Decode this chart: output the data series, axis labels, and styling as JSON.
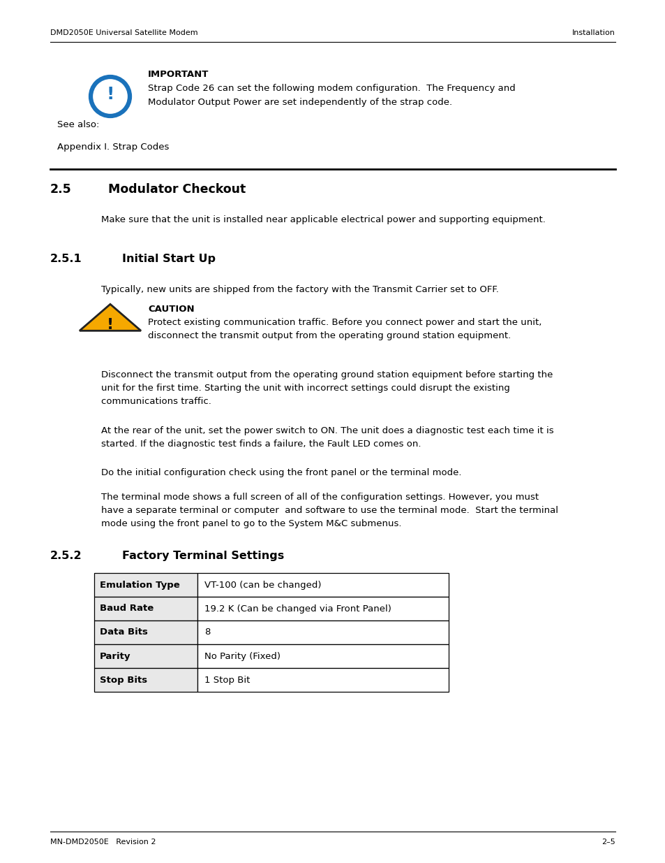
{
  "page_width": 9.54,
  "page_height": 12.35,
  "bg_color": "#ffffff",
  "header_left": "DMD2050E Universal Satellite Modem",
  "header_right": "Installation",
  "footer_left": "MN-DMD2050E   Revision 2",
  "footer_right": "2–5",
  "important_title": "IMPORTANT",
  "important_body1": "Strap Code 26 can set the following modem configuration.  The Frequency and",
  "important_body2": "Modulator Output Power are set independently of the strap code.",
  "see_also": "See also:",
  "appendix_ref": "Appendix I. Strap Codes",
  "section_25": "2.5",
  "section_25_title": "Modulator Checkout",
  "section_25_body": "Make sure that the unit is installed near applicable electrical power and supporting equipment.",
  "section_251": "2.5.1",
  "section_251_title": "Initial Start Up",
  "section_251_body": "Typically, new units are shipped from the factory with the Transmit Carrier set to OFF.",
  "caution_title": "CAUTION",
  "caution_body1": "Protect existing communication traffic. Before you connect power and start the unit,",
  "caution_body2": "disconnect the transmit output from the operating ground station equipment.",
  "body_para1_line1": "Disconnect the transmit output from the operating ground station equipment before starting the",
  "body_para1_line2": "unit for the first time. Starting the unit with incorrect settings could disrupt the existing",
  "body_para1_line3": "communications traffic.",
  "body_para2_line1": "At the rear of the unit, set the power switch to ON. The unit does a diagnostic test each time it is",
  "body_para2_line2": "started. If the diagnostic test finds a failure, the Fault LED comes on.",
  "body_para3": "Do the initial configuration check using the front panel or the terminal mode.",
  "body_para4_line1": "The terminal mode shows a full screen of all of the configuration settings. However, you must",
  "body_para4_line2": "have a separate terminal or computer  and software to use the terminal mode.  Start the terminal",
  "body_para4_line3": "mode using the front panel to go to the System M&C submenus.",
  "section_252": "2.5.2",
  "section_252_title": "Factory Terminal Settings",
  "table_headers": [
    "Emulation Type",
    "Baud Rate",
    "Data Bits",
    "Parity",
    "Stop Bits"
  ],
  "table_values": [
    "VT-100 (can be changed)",
    "19.2 K (Can be changed via Front Panel)",
    "8",
    "No Parity (Fixed)",
    "1 Stop Bit"
  ],
  "table_col1_bg": "#e8e8e8",
  "table_border_color": "#000000",
  "text_color": "#000000",
  "icon_important_color": "#1a72bb",
  "icon_caution_color": "#f5a800"
}
